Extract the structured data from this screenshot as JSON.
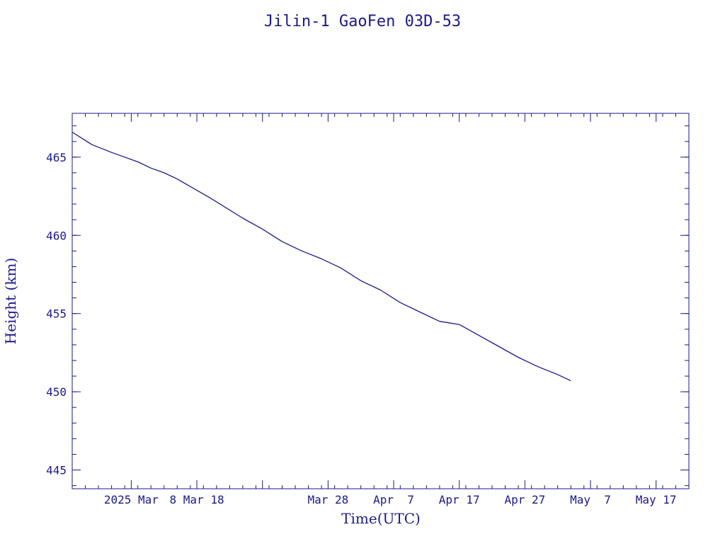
{
  "chart_data": {
    "type": "line",
    "title": "Jilin-1 GaoFen 03D-53",
    "xlabel": "Time(UTC)",
    "ylabel": "Height (km)",
    "xlim": [
      "2025-02-17",
      "2025-05-22"
    ],
    "ylim": [
      443.8,
      467.8
    ],
    "x_tick_labels": [
      {
        "date": "2025-02-26",
        "label": "2025 Mar"
      },
      {
        "date": "2025-03-08",
        "label": "8 Mar 18"
      },
      {
        "date": "2025-03-28",
        "label": "Mar 28"
      },
      {
        "date": "2025-04-07",
        "label": "Apr  7"
      },
      {
        "date": "2025-04-17",
        "label": "Apr 17"
      },
      {
        "date": "2025-04-27",
        "label": "Apr 27"
      },
      {
        "date": "2025-05-07",
        "label": "May  7"
      },
      {
        "date": "2025-05-17",
        "label": "May 17"
      }
    ],
    "x_major_ticks": [
      "2025-02-26",
      "2025-03-08",
      "2025-03-18",
      "2025-03-28",
      "2025-04-07",
      "2025-04-17",
      "2025-04-27",
      "2025-05-07",
      "2025-05-17"
    ],
    "y_ticks": [
      445,
      450,
      455,
      460,
      465
    ],
    "y_minor_step": 1,
    "series": [
      {
        "x": [
          "2025-02-17",
          "2025-02-20",
          "2025-02-23",
          "2025-02-27",
          "2025-03-01",
          "2025-03-03",
          "2025-03-05",
          "2025-03-10",
          "2025-03-15",
          "2025-03-18",
          "2025-03-21",
          "2025-03-24",
          "2025-03-27",
          "2025-03-30",
          "2025-04-02",
          "2025-04-05",
          "2025-04-08",
          "2025-04-11",
          "2025-04-14",
          "2025-04-17",
          "2025-04-20",
          "2025-04-23",
          "2025-04-26",
          "2025-04-29",
          "2025-05-02",
          "2025-05-04"
        ],
        "y": [
          466.6,
          465.8,
          465.3,
          464.7,
          464.3,
          464.0,
          463.6,
          462.4,
          461.1,
          460.4,
          459.6,
          459.0,
          458.5,
          457.9,
          457.1,
          456.5,
          455.7,
          455.1,
          454.5,
          454.3,
          453.6,
          452.9,
          452.2,
          451.6,
          451.1,
          450.7
        ]
      }
    ]
  }
}
